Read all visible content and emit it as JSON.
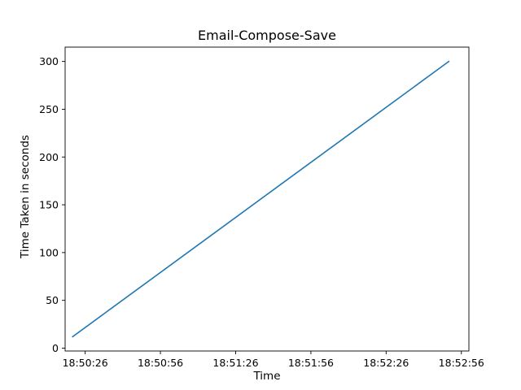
{
  "chart_data": {
    "type": "line",
    "title": "Email-Compose-Save",
    "xlabel": "Time",
    "ylabel": "Time Taken in seconds",
    "x_ticks": [
      "18:50:26",
      "18:50:56",
      "18:51:26",
      "18:51:56",
      "18:52:26",
      "18:52:56"
    ],
    "y_ticks": [
      0,
      50,
      100,
      150,
      200,
      250,
      300
    ],
    "xlim": [
      "18:50:18",
      "18:52:59"
    ],
    "ylim": [
      -3,
      315
    ],
    "grid": false,
    "series": [
      {
        "color": "#1f77b4",
        "x": [
          "18:50:21",
          "18:52:51"
        ],
        "y": [
          12,
          300
        ]
      }
    ]
  }
}
